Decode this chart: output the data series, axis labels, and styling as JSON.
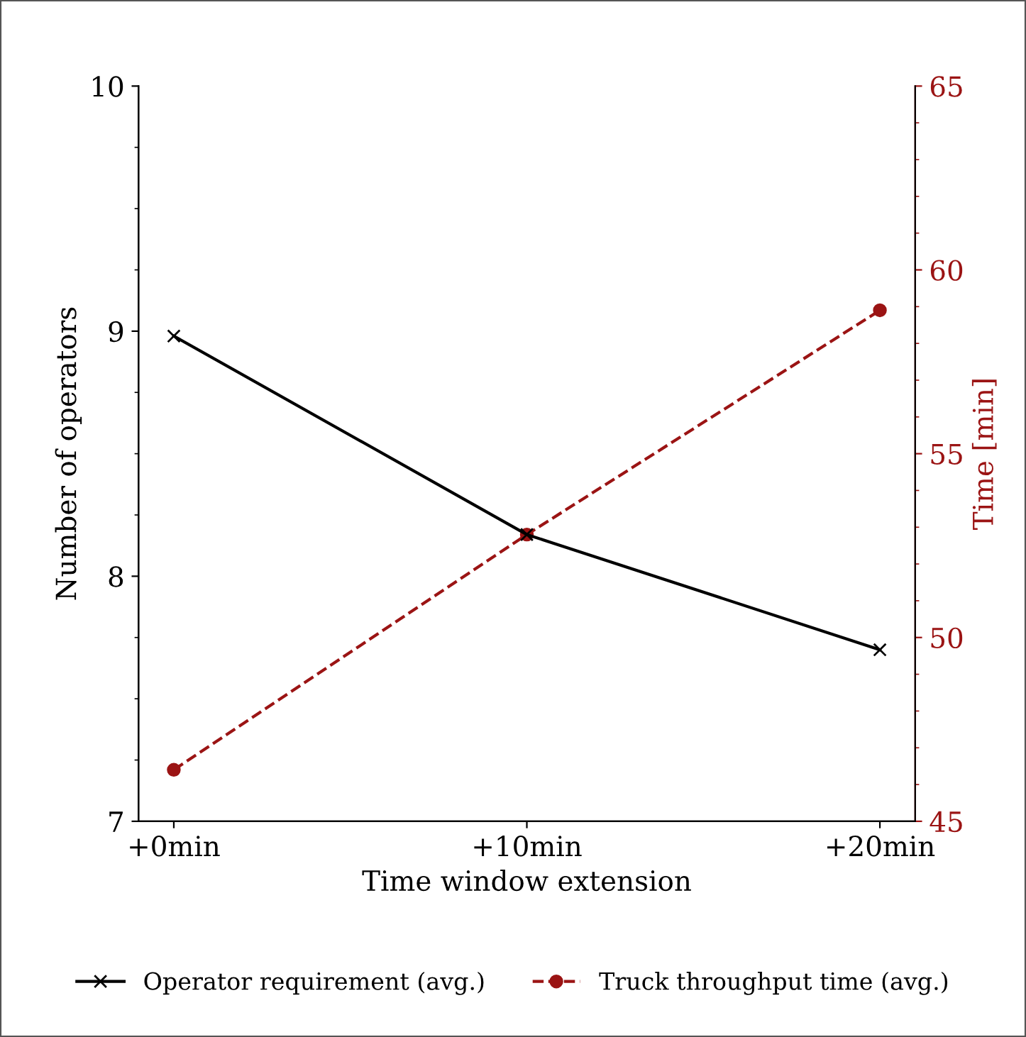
{
  "chart_data": {
    "type": "line",
    "xlabel": "Time window extension",
    "ylabel": "Number of operators",
    "y2label": "Time [min]",
    "categories": [
      "+0min",
      "+10min",
      "+20min"
    ],
    "series": [
      {
        "name": "Operator requirement (avg.)",
        "color": "#000000",
        "values": [
          8.98,
          8.17,
          7.7
        ],
        "marker": "cross",
        "line_style": "solid"
      },
      {
        "name": "Truck throughput time (avg.)",
        "color": "#9b1414",
        "values": [
          46.4,
          52.8,
          58.9
        ],
        "marker": "circle",
        "line_style": "dashed",
        "axis": "y2"
      }
    ],
    "ylim": [
      7,
      10
    ],
    "yticks": [
      7,
      {
        "value": 7.25,
        "label": null
      },
      {
        "value": 7.5,
        "label": null
      },
      {
        "value": 7.75,
        "label": null
      },
      8,
      {
        "value": 8.25,
        "label": null
      },
      {
        "value": 8.5,
        "label": null
      },
      {
        "value": 8.75,
        "label": null
      },
      9,
      {
        "value": 9.25,
        "label": null
      },
      {
        "value": 9.5,
        "label": null
      },
      {
        "value": 9.75,
        "label": null
      },
      10
    ],
    "y2lim": [
      45,
      65
    ],
    "y2ticks": [
      45,
      {
        "value": 46,
        "label": null
      },
      {
        "value": 47,
        "label": null
      },
      {
        "value": 48,
        "label": null
      },
      {
        "value": 49,
        "label": null
      },
      50,
      {
        "value": 51,
        "label": null
      },
      {
        "value": 52,
        "label": null
      },
      {
        "value": 53,
        "label": null
      },
      {
        "value": 54,
        "label": null
      },
      55,
      {
        "value": 56,
        "label": null
      },
      {
        "value": 57,
        "label": null
      },
      {
        "value": 58,
        "label": null
      },
      {
        "value": 59,
        "label": null
      },
      60,
      {
        "value": 61,
        "label": null
      },
      {
        "value": 62,
        "label": null
      },
      {
        "value": 63,
        "label": null
      },
      {
        "value": 64,
        "label": null
      },
      65
    ],
    "grid": false,
    "legend": "bottom"
  }
}
